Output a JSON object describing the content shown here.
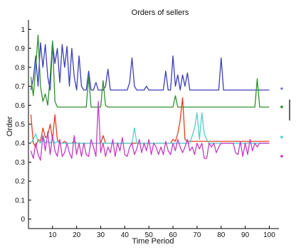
{
  "chart_data": {
    "type": "line",
    "title": "Orders of sellers",
    "xlabel": "Time Period",
    "ylabel": "Order",
    "xlim": [
      0,
      104
    ],
    "ylim": [
      -0.05,
      1.05
    ],
    "x_ticks": [
      10,
      20,
      30,
      40,
      50,
      60,
      70,
      80,
      90,
      100
    ],
    "y_ticks": [
      0,
      0.1,
      0.2,
      0.3,
      0.4,
      0.5,
      0.6,
      0.7,
      0.8,
      0.9,
      1
    ],
    "grid": false,
    "legend": {
      "placement": "right",
      "markers": [
        {
          "symbol": "*",
          "color": "#3b3fb8",
          "y": 0.68
        },
        {
          "symbol": "•",
          "color": "#2f8f2f",
          "y": 0.59
        },
        {
          "symbol": "•",
          "color": "#4fd0c8",
          "y": 0.43
        },
        {
          "symbol": "•",
          "color": "#c23cc2",
          "y": 0.33
        }
      ],
      "bar": {
        "color": "#000000",
        "y_from": 0.52,
        "y_to": 0.63
      }
    },
    "series": [
      {
        "color": "#3b3fb8",
        "x": [
          1,
          2,
          3,
          4,
          5,
          6,
          7,
          8,
          9,
          10,
          11,
          12,
          13,
          14,
          15,
          16,
          17,
          18,
          19,
          20,
          21,
          22,
          23,
          24,
          25,
          26,
          27,
          28,
          29,
          30,
          31,
          32,
          33,
          34,
          35,
          36,
          37,
          38,
          39,
          40,
          41,
          42,
          43,
          44,
          45,
          46,
          47,
          48,
          49,
          50,
          51,
          52,
          53,
          54,
          55,
          56,
          57,
          58,
          59,
          60,
          61,
          62,
          63,
          64,
          65,
          66,
          67,
          68,
          69,
          70,
          71,
          72,
          73,
          74,
          75,
          76,
          77,
          78,
          79,
          80,
          81,
          82,
          83,
          84,
          85,
          86,
          87,
          88,
          89,
          90,
          91,
          92,
          93,
          94,
          95,
          96,
          97,
          98,
          99,
          100
        ],
        "values": [
          0.68,
          0.74,
          0.86,
          0.7,
          0.93,
          0.8,
          0.92,
          0.75,
          0.68,
          0.93,
          0.82,
          0.9,
          0.72,
          0.92,
          0.8,
          0.91,
          0.7,
          0.9,
          0.75,
          0.68,
          0.86,
          0.7,
          0.68,
          0.68,
          0.78,
          0.68,
          0.68,
          0.72,
          0.68,
          0.68,
          0.68,
          0.7,
          0.79,
          0.68,
          0.68,
          0.68,
          0.68,
          0.68,
          0.68,
          0.68,
          0.68,
          0.72,
          0.85,
          0.7,
          0.68,
          0.68,
          0.68,
          0.68,
          0.7,
          0.68,
          0.68,
          0.68,
          0.68,
          0.68,
          0.68,
          0.68,
          0.78,
          0.68,
          0.68,
          0.86,
          0.7,
          0.76,
          0.68,
          0.76,
          0.7,
          0.77,
          0.68,
          0.68,
          0.68,
          0.68,
          0.68,
          0.68,
          0.68,
          0.68,
          0.68,
          0.68,
          0.68,
          0.68,
          0.68,
          0.85,
          0.68,
          0.68,
          0.68,
          0.68,
          0.68,
          0.68,
          0.68,
          0.68,
          0.68,
          0.68,
          0.68,
          0.68,
          0.68,
          0.68,
          0.68,
          0.68,
          0.68,
          0.68,
          0.68,
          0.68
        ]
      },
      {
        "color": "#2f8f2f",
        "x": [
          1,
          2,
          3,
          4,
          5,
          6,
          7,
          8,
          9,
          10,
          11,
          12,
          13,
          14,
          15,
          16,
          17,
          18,
          19,
          20,
          21,
          22,
          23,
          24,
          25,
          26,
          27,
          28,
          29,
          30,
          31,
          32,
          33,
          34,
          35,
          36,
          37,
          38,
          39,
          40,
          41,
          42,
          43,
          44,
          45,
          46,
          47,
          48,
          49,
          50,
          51,
          52,
          53,
          54,
          55,
          56,
          57,
          58,
          59,
          60,
          61,
          62,
          63,
          64,
          65,
          66,
          67,
          68,
          69,
          70,
          71,
          72,
          73,
          74,
          75,
          76,
          77,
          78,
          79,
          80,
          81,
          82,
          83,
          84,
          85,
          86,
          87,
          88,
          89,
          90,
          91,
          92,
          93,
          94,
          95,
          96,
          97,
          98,
          99,
          100
        ],
        "values": [
          0.75,
          0.65,
          0.8,
          0.97,
          0.7,
          0.62,
          0.66,
          0.6,
          0.75,
          0.94,
          0.62,
          0.59,
          0.59,
          0.59,
          0.59,
          0.59,
          0.59,
          0.59,
          0.59,
          0.59,
          0.59,
          0.59,
          0.59,
          0.59,
          0.75,
          0.59,
          0.59,
          0.59,
          0.59,
          0.59,
          0.73,
          0.6,
          0.59,
          0.59,
          0.59,
          0.59,
          0.59,
          0.59,
          0.59,
          0.59,
          0.59,
          0.59,
          0.59,
          0.59,
          0.59,
          0.59,
          0.59,
          0.59,
          0.59,
          0.59,
          0.59,
          0.59,
          0.59,
          0.59,
          0.59,
          0.59,
          0.59,
          0.59,
          0.59,
          0.59,
          0.65,
          0.59,
          0.59,
          0.59,
          0.59,
          0.59,
          0.59,
          0.59,
          0.59,
          0.59,
          0.59,
          0.59,
          0.59,
          0.59,
          0.59,
          0.59,
          0.59,
          0.59,
          0.59,
          0.59,
          0.59,
          0.59,
          0.59,
          0.59,
          0.59,
          0.59,
          0.59,
          0.59,
          0.59,
          0.59,
          0.59,
          0.59,
          0.59,
          0.59,
          0.74,
          0.59,
          0.59,
          0.59,
          0.59,
          0.59
        ]
      },
      {
        "color": "#e0401c",
        "x": [
          1,
          2,
          3,
          4,
          5,
          6,
          7,
          8,
          9,
          10,
          11,
          12,
          13,
          14,
          15,
          16,
          17,
          18,
          19,
          20,
          21,
          22,
          23,
          24,
          25,
          26,
          27,
          28,
          29,
          30,
          31,
          32,
          33,
          34,
          35,
          36,
          37,
          38,
          39,
          40,
          41,
          42,
          43,
          44,
          45,
          46,
          47,
          48,
          49,
          50,
          51,
          52,
          53,
          54,
          55,
          56,
          57,
          58,
          59,
          60,
          61,
          62,
          63,
          64,
          65,
          66,
          67,
          68,
          69,
          70,
          71,
          72,
          73,
          74,
          75,
          76,
          77,
          78,
          79,
          80,
          81,
          82,
          83,
          84,
          85,
          86,
          87,
          88,
          89,
          90,
          91,
          92,
          93,
          94,
          95,
          96,
          97,
          98,
          99,
          100
        ],
        "values": [
          0.55,
          0.4,
          0.38,
          0.42,
          0.41,
          0.48,
          0.43,
          0.44,
          0.5,
          0.42,
          0.55,
          0.42,
          0.4,
          0.4,
          0.41,
          0.4,
          0.4,
          0.4,
          0.41,
          0.4,
          0.4,
          0.4,
          0.4,
          0.4,
          0.4,
          0.4,
          0.4,
          0.4,
          0.4,
          0.4,
          0.44,
          0.4,
          0.4,
          0.4,
          0.4,
          0.4,
          0.4,
          0.4,
          0.4,
          0.4,
          0.4,
          0.4,
          0.4,
          0.4,
          0.4,
          0.4,
          0.4,
          0.4,
          0.4,
          0.4,
          0.4,
          0.4,
          0.4,
          0.4,
          0.4,
          0.4,
          0.4,
          0.4,
          0.4,
          0.42,
          0.41,
          0.45,
          0.52,
          0.64,
          0.42,
          0.41,
          0.41,
          0.41,
          0.41,
          0.41,
          0.41,
          0.41,
          0.41,
          0.41,
          0.41,
          0.41,
          0.41,
          0.41,
          0.41,
          0.41,
          0.41,
          0.41,
          0.41,
          0.41,
          0.41,
          0.41,
          0.41,
          0.41,
          0.41,
          0.41,
          0.41,
          0.41,
          0.41,
          0.41,
          0.41,
          0.41,
          0.41,
          0.41,
          0.41,
          0.41
        ]
      },
      {
        "color": "#4fd0c8",
        "x": [
          1,
          2,
          3,
          4,
          5,
          6,
          7,
          8,
          9,
          10,
          11,
          12,
          13,
          14,
          15,
          16,
          17,
          18,
          19,
          20,
          21,
          22,
          23,
          24,
          25,
          26,
          27,
          28,
          29,
          30,
          31,
          32,
          33,
          34,
          35,
          36,
          37,
          38,
          39,
          40,
          41,
          42,
          43,
          44,
          45,
          46,
          47,
          48,
          49,
          50,
          51,
          52,
          53,
          54,
          55,
          56,
          57,
          58,
          59,
          60,
          61,
          62,
          63,
          64,
          65,
          66,
          67,
          68,
          69,
          70,
          71,
          72,
          73,
          74,
          75,
          76,
          77,
          78,
          79,
          80,
          81,
          82,
          83,
          84,
          85,
          86,
          87,
          88,
          89,
          90,
          91,
          92,
          93,
          94,
          95,
          96,
          97,
          98,
          99,
          100
        ],
        "values": [
          0.4,
          0.42,
          0.45,
          0.41,
          0.4,
          0.44,
          0.4,
          0.41,
          0.4,
          0.42,
          0.4,
          0.41,
          0.4,
          0.4,
          0.4,
          0.4,
          0.4,
          0.4,
          0.4,
          0.4,
          0.4,
          0.4,
          0.4,
          0.4,
          0.4,
          0.4,
          0.4,
          0.4,
          0.4,
          0.4,
          0.4,
          0.4,
          0.4,
          0.4,
          0.4,
          0.4,
          0.4,
          0.4,
          0.4,
          0.4,
          0.4,
          0.4,
          0.4,
          0.48,
          0.4,
          0.4,
          0.4,
          0.4,
          0.4,
          0.4,
          0.4,
          0.4,
          0.4,
          0.4,
          0.4,
          0.4,
          0.4,
          0.4,
          0.4,
          0.4,
          0.4,
          0.4,
          0.4,
          0.4,
          0.4,
          0.4,
          0.4,
          0.44,
          0.48,
          0.56,
          0.42,
          0.56,
          0.45,
          0.42,
          0.4,
          0.4,
          0.4,
          0.4,
          0.4,
          0.4,
          0.4,
          0.4,
          0.4,
          0.4,
          0.4,
          0.4,
          0.4,
          0.4,
          0.4,
          0.4,
          0.4,
          0.4,
          0.4,
          0.4,
          0.4,
          0.4,
          0.4,
          0.4,
          0.4,
          0.4
        ]
      },
      {
        "color": "#c23cc2",
        "x": [
          1,
          2,
          3,
          4,
          5,
          6,
          7,
          8,
          9,
          10,
          11,
          12,
          13,
          14,
          15,
          16,
          17,
          18,
          19,
          20,
          21,
          22,
          23,
          24,
          25,
          26,
          27,
          28,
          29,
          30,
          31,
          32,
          33,
          34,
          35,
          36,
          37,
          38,
          39,
          40,
          41,
          42,
          43,
          44,
          45,
          46,
          47,
          48,
          49,
          50,
          51,
          52,
          53,
          54,
          55,
          56,
          57,
          58,
          59,
          60,
          61,
          62,
          63,
          64,
          65,
          66,
          67,
          68,
          69,
          70,
          71,
          72,
          73,
          74,
          75,
          76,
          77,
          78,
          79,
          80,
          81,
          82,
          83,
          84,
          85,
          86,
          87,
          88,
          89,
          90,
          91,
          92,
          93,
          94,
          95,
          96,
          97,
          98,
          99,
          100
        ],
        "values": [
          0.36,
          0.32,
          0.4,
          0.34,
          0.31,
          0.44,
          0.36,
          0.46,
          0.34,
          0.44,
          0.36,
          0.33,
          0.42,
          0.33,
          0.35,
          0.4,
          0.35,
          0.32,
          0.44,
          0.34,
          0.4,
          0.33,
          0.4,
          0.34,
          0.33,
          0.42,
          0.38,
          0.33,
          0.62,
          0.35,
          0.4,
          0.33,
          0.38,
          0.35,
          0.42,
          0.33,
          0.4,
          0.36,
          0.43,
          0.34,
          0.33,
          0.38,
          0.4,
          0.34,
          0.37,
          0.42,
          0.35,
          0.4,
          0.36,
          0.42,
          0.34,
          0.4,
          0.38,
          0.34,
          0.38,
          0.34,
          0.41,
          0.36,
          0.34,
          0.4,
          0.36,
          0.42,
          0.38,
          0.35,
          0.38,
          0.42,
          0.36,
          0.38,
          0.34,
          0.4,
          0.37,
          0.4,
          0.32,
          0.32,
          0.4,
          0.38,
          0.4,
          0.35,
          0.38,
          0.4,
          0.4,
          0.4,
          0.4,
          0.4,
          0.4,
          0.35,
          0.34,
          0.41,
          0.33,
          0.4,
          0.34,
          0.42,
          0.36,
          0.4,
          0.38,
          0.4,
          0.4,
          0.4,
          0.4,
          0.4
        ]
      }
    ]
  }
}
